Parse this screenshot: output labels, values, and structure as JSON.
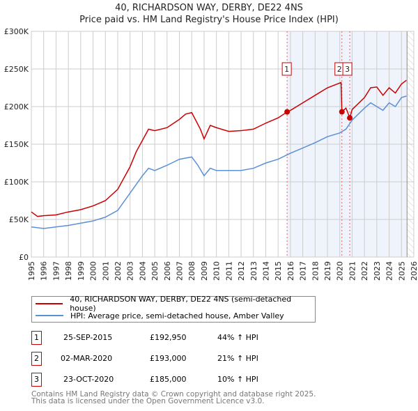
{
  "chart_data": {
    "type": "line",
    "title": "40, RICHARDSON WAY, DERBY, DE22 4NS",
    "subtitle": "Price paid vs. HM Land Registry's House Price Index (HPI)",
    "xlim": [
      1995,
      2026
    ],
    "ylim": [
      0,
      300000
    ],
    "x_ticks": [
      "1995",
      "1996",
      "1997",
      "1998",
      "1999",
      "2000",
      "2001",
      "2002",
      "2003",
      "2004",
      "2005",
      "2006",
      "2007",
      "2008",
      "2009",
      "2010",
      "2011",
      "2012",
      "2013",
      "2014",
      "2015",
      "2016",
      "2017",
      "2018",
      "2019",
      "2020",
      "2021",
      "2022",
      "2023",
      "2024",
      "2025",
      "2026"
    ],
    "y_ticks": [
      {
        "v": 0,
        "label": "£0"
      },
      {
        "v": 50000,
        "label": "£50K"
      },
      {
        "v": 100000,
        "label": "£100K"
      },
      {
        "v": 150000,
        "label": "£150K"
      },
      {
        "v": 200000,
        "label": "£200K"
      },
      {
        "v": 250000,
        "label": "£250K"
      },
      {
        "v": 300000,
        "label": "£300K"
      }
    ],
    "grid": true,
    "shaded_from": 2015.73,
    "hatched_from": 2025.45,
    "series": [
      {
        "name": "40, RICHARDSON WAY, DERBY, DE22 4NS (semi-detached house)",
        "color": "#cc0000",
        "x": [
          1995,
          1995.5,
          1996,
          1997,
          1998,
          1999,
          2000,
          2001,
          2002,
          2003,
          2003.5,
          2004,
          2004.5,
          2005,
          2006,
          2007,
          2007.5,
          2008,
          2008.7,
          2009,
          2009.5,
          2010,
          2011,
          2012,
          2013,
          2014,
          2015,
          2015.73,
          2016,
          2017,
          2018,
          2019,
          2020.1,
          2020.17,
          2020.5,
          2020.81,
          2021,
          2022,
          2022.5,
          2023,
          2023.5,
          2024,
          2024.5,
          2025,
          2025.4
        ],
        "y": [
          60000,
          54000,
          55000,
          56000,
          60000,
          63000,
          68000,
          75000,
          90000,
          120000,
          140000,
          155000,
          170000,
          168000,
          172000,
          183000,
          190000,
          192000,
          170000,
          157000,
          175000,
          172000,
          167000,
          168000,
          170000,
          178000,
          185000,
          192950,
          195000,
          205000,
          215000,
          225000,
          232000,
          193000,
          198000,
          185000,
          196000,
          212000,
          225000,
          226000,
          215000,
          225000,
          218000,
          230000,
          235000
        ]
      },
      {
        "name": "HPI: Average price, semi-detached house, Amber Valley",
        "color": "#5b8fd6",
        "x": [
          1995,
          1996,
          1997,
          1998,
          1999,
          2000,
          2001,
          2002,
          2003,
          2004,
          2004.5,
          2005,
          2006,
          2007,
          2008,
          2008.5,
          2009,
          2009.5,
          2010,
          2011,
          2012,
          2013,
          2014,
          2015,
          2016,
          2017,
          2018,
          2019,
          2020,
          2020.5,
          2021,
          2022,
          2022.5,
          2023,
          2023.5,
          2024,
          2024.5,
          2025,
          2025.4
        ],
        "y": [
          40000,
          38000,
          40000,
          42000,
          45000,
          48000,
          53000,
          62000,
          85000,
          108000,
          118000,
          115000,
          122000,
          130000,
          133000,
          122000,
          108000,
          118000,
          115000,
          115000,
          115000,
          118000,
          125000,
          130000,
          138000,
          145000,
          152000,
          160000,
          165000,
          170000,
          182000,
          198000,
          205000,
          200000,
          195000,
          205000,
          200000,
          212000,
          214000
        ]
      }
    ],
    "sales": [
      {
        "n": "1",
        "x": 2015.73,
        "y": 192950
      },
      {
        "n": "2",
        "x": 2020.17,
        "y": 193000
      },
      {
        "n": "3",
        "x": 2020.81,
        "y": 185000
      }
    ]
  },
  "table": [
    {
      "n": "1",
      "date": "25-SEP-2015",
      "price": "£192,950",
      "hpi": "44% ↑ HPI"
    },
    {
      "n": "2",
      "date": "02-MAR-2020",
      "price": "£193,000",
      "hpi": "21% ↑ HPI"
    },
    {
      "n": "3",
      "date": "23-OCT-2020",
      "price": "£185,000",
      "hpi": "10% ↑ HPI"
    }
  ],
  "footer": [
    "Contains HM Land Registry data © Crown copyright and database right 2025.",
    "This data is licensed under the Open Government Licence v3.0."
  ]
}
